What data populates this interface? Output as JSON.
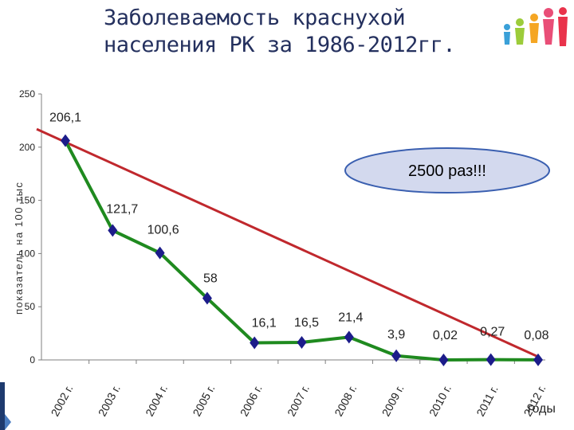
{
  "page": {
    "title_line1": "Заболеваемость краснухой",
    "title_line2": "населения РК за 1986-2012гг."
  },
  "colors": {
    "title": "#24305e",
    "series_line": "#1f8a1f",
    "marker": "#1c1c8a",
    "trend_line": "#c0282d",
    "callout_fill": "#d3d9ee",
    "callout_stroke": "#3a5fb0",
    "axis": "#7f7f7f"
  },
  "icons": [
    "people-logo-icon"
  ],
  "chart_data": {
    "type": "line",
    "title": "",
    "ylabel": "показатель на 100 тыс",
    "xlabel": "годы",
    "ylim": [
      0,
      250
    ],
    "yticks": [
      0,
      50,
      100,
      150,
      200,
      250
    ],
    "grid": false,
    "categories": [
      "2002 г.",
      "2003 г.",
      "2004 г.",
      "2005 г.",
      "2006 г.",
      "2007 г.",
      "2008 г.",
      "2009 г.",
      "2010 г.",
      "2011 г.",
      "2012 г."
    ],
    "series": [
      {
        "values": [
          206.1,
          121.7,
          100.6,
          58,
          16.1,
          16.5,
          21.4,
          3.9,
          0.02,
          0.27,
          0.08
        ],
        "data_labels": [
          "206,1",
          "121,7",
          "100,6",
          "58",
          "16,1",
          "16,5",
          "21,4",
          "3,9",
          "0,02",
          "0,27",
          "0,08"
        ]
      }
    ],
    "trend_line": {
      "from": [
        0,
        217
      ],
      "to": [
        10,
        3
      ]
    },
    "annotation": "2500 раз!!!"
  }
}
